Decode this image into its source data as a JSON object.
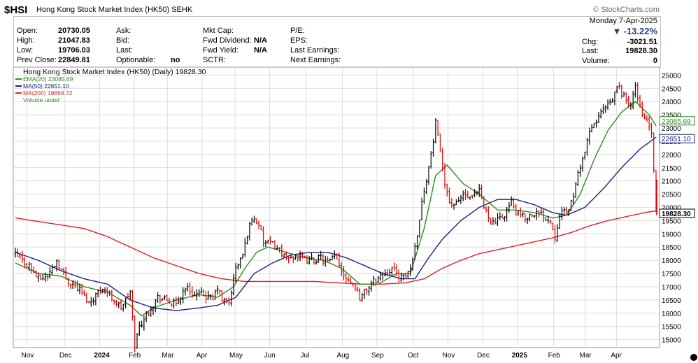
{
  "header": {
    "symbol": "$HSI",
    "name": "Hong Kong Stock Market Index (HK50)",
    "exchange": "SEHK",
    "brand": "© StockCharts.com",
    "date": "Monday  7-Apr-2025",
    "change_pct": "-13.22%",
    "chg_label": "Chg:",
    "chg_value": "-3021.51",
    "last_label": "Last:",
    "last_value": "19828.30",
    "volume_label": "Volume:",
    "volume_value": "0"
  },
  "quote": {
    "open_label": "Open:",
    "open": "20730.05",
    "high_label": "High:",
    "high": "21047.83",
    "low_label": "Low:",
    "low": "19706.03",
    "prev_label": "Prev Close:",
    "prev": "22849.81",
    "ask_label": "Ask:",
    "bid_label": "Bid:",
    "last_label2": "Last:",
    "optionable_label": "Optionable:",
    "optionable": "no",
    "mktcap_label": "Mkt Cap:",
    "fwd_div_label": "Fwd Dividend:",
    "fwd_div": "N/A",
    "fwd_yield_label": "Fwd Yield:",
    "fwd_yield": "N/A",
    "sctr_label": "SCTR:",
    "pe_label": "P/E:",
    "eps_label": "EPS:",
    "last_earn_label": "Last Earnings:",
    "next_earn_label": "Next Earnings:"
  },
  "legend": {
    "title": "Hong Kong Stock Market Index (HK50) (Daily) 19828.30",
    "ema": "EMA(20) 23085.69",
    "ma50": "MA(50) 22651.10",
    "ma200": "MA(200) 19869.72",
    "volume": "Volume undef"
  },
  "colors": {
    "up": "#000000",
    "down": "#e00000",
    "ema": "#2e8b22",
    "ma50": "#1a237e",
    "ma200": "#e02020",
    "grid": "#dcdcdc"
  },
  "chart_data": {
    "type": "line",
    "title": "Hong Kong Stock Market Index (HK50) (Daily) 19828.30",
    "x_ticks": [
      "Nov",
      "Dec",
      "2024",
      "Feb",
      "Mar",
      "Apr",
      "May",
      "Jun",
      "Jul",
      "Aug",
      "Sep",
      "Oct",
      "Nov",
      "Dec",
      "2025",
      "Feb",
      "Mar",
      "Apr"
    ],
    "y_ticks": [
      15000,
      15500,
      16000,
      16500,
      17000,
      17500,
      18000,
      18500,
      19000,
      19500,
      20000,
      20500,
      21000,
      21500,
      22000,
      22500,
      23000,
      23500,
      24000,
      24500,
      25000
    ],
    "ylim": [
      14700,
      25300
    ],
    "price_labels": [
      {
        "value": 23085.69,
        "text": "23085.69",
        "color": "#2e8b22"
      },
      {
        "value": 22651.1,
        "text": "22651.10",
        "color": "#1a237e"
      },
      {
        "value": 19869.72,
        "text": "19869.72",
        "color": "#e02020"
      },
      {
        "value": 19828.3,
        "text": "19828.30",
        "color": "#000000"
      }
    ],
    "price_anchors": [
      [
        0,
        18200
      ],
      [
        6,
        17800
      ],
      [
        10,
        17300
      ],
      [
        14,
        17400
      ],
      [
        18,
        18000
      ],
      [
        22,
        17300
      ],
      [
        28,
        16900
      ],
      [
        32,
        16400
      ],
      [
        38,
        17000
      ],
      [
        42,
        16600
      ],
      [
        46,
        16200
      ],
      [
        50,
        16800
      ],
      [
        52,
        14800
      ],
      [
        54,
        15500
      ],
      [
        58,
        16100
      ],
      [
        62,
        16600
      ],
      [
        66,
        16500
      ],
      [
        70,
        16300
      ],
      [
        74,
        17000
      ],
      [
        78,
        16700
      ],
      [
        82,
        16700
      ],
      [
        86,
        16500
      ],
      [
        88,
        17000
      ],
      [
        90,
        16500
      ],
      [
        93,
        16400
      ],
      [
        96,
        17700
      ],
      [
        99,
        18200
      ],
      [
        101,
        19000
      ],
      [
        103,
        19600
      ],
      [
        106,
        19400
      ],
      [
        108,
        18700
      ],
      [
        112,
        18600
      ],
      [
        116,
        18300
      ],
      [
        118,
        18000
      ],
      [
        122,
        18200
      ],
      [
        126,
        18000
      ],
      [
        130,
        18000
      ],
      [
        133,
        18100
      ],
      [
        136,
        17900
      ],
      [
        140,
        18200
      ],
      [
        142,
        17600
      ],
      [
        145,
        17300
      ],
      [
        148,
        17000
      ],
      [
        150,
        16600
      ],
      [
        153,
        16900
      ],
      [
        156,
        17200
      ],
      [
        160,
        17500
      ],
      [
        164,
        17700
      ],
      [
        166,
        17500
      ],
      [
        169,
        17300
      ],
      [
        172,
        17700
      ],
      [
        174,
        18500
      ],
      [
        176,
        19600
      ],
      [
        178,
        20700
      ],
      [
        180,
        21500
      ],
      [
        182,
        22500
      ],
      [
        183,
        23200
      ],
      [
        185,
        22000
      ],
      [
        187,
        21000
      ],
      [
        189,
        20200
      ],
      [
        192,
        20100
      ],
      [
        195,
        20500
      ],
      [
        198,
        20300
      ],
      [
        202,
        20600
      ],
      [
        204,
        20000
      ],
      [
        208,
        19400
      ],
      [
        212,
        19600
      ],
      [
        216,
        20200
      ],
      [
        218,
        19800
      ],
      [
        222,
        19600
      ],
      [
        226,
        19800
      ],
      [
        230,
        19700
      ],
      [
        233,
        19500
      ],
      [
        235,
        18900
      ],
      [
        237,
        19800
      ],
      [
        240,
        19800
      ],
      [
        242,
        20200
      ],
      [
        244,
        20800
      ],
      [
        246,
        21600
      ],
      [
        248,
        22100
      ],
      [
        250,
        22800
      ],
      [
        253,
        23300
      ],
      [
        256,
        23700
      ],
      [
        260,
        24000
      ],
      [
        262,
        24600
      ],
      [
        265,
        24200
      ],
      [
        268,
        23800
      ],
      [
        270,
        24600
      ],
      [
        272,
        23800
      ],
      [
        275,
        23200
      ],
      [
        277,
        22850
      ],
      [
        279,
        19828
      ]
    ],
    "ema20_anchors": [
      [
        0,
        17900
      ],
      [
        10,
        17500
      ],
      [
        20,
        17400
      ],
      [
        30,
        17000
      ],
      [
        40,
        16800
      ],
      [
        50,
        16300
      ],
      [
        55,
        15900
      ],
      [
        60,
        16200
      ],
      [
        70,
        16500
      ],
      [
        80,
        16700
      ],
      [
        88,
        16600
      ],
      [
        95,
        17000
      ],
      [
        100,
        17700
      ],
      [
        105,
        18300
      ],
      [
        110,
        18500
      ],
      [
        118,
        18300
      ],
      [
        126,
        18100
      ],
      [
        134,
        18000
      ],
      [
        142,
        17700
      ],
      [
        150,
        17100
      ],
      [
        158,
        17100
      ],
      [
        166,
        17500
      ],
      [
        172,
        17500
      ],
      [
        178,
        19200
      ],
      [
        183,
        21200
      ],
      [
        188,
        21600
      ],
      [
        195,
        20900
      ],
      [
        202,
        20500
      ],
      [
        210,
        19900
      ],
      [
        218,
        19900
      ],
      [
        226,
        19800
      ],
      [
        234,
        19600
      ],
      [
        240,
        19700
      ],
      [
        246,
        20500
      ],
      [
        252,
        21800
      ],
      [
        258,
        22900
      ],
      [
        264,
        23600
      ],
      [
        270,
        24000
      ],
      [
        276,
        23500
      ],
      [
        279,
        23086
      ]
    ],
    "ma50_anchors": [
      [
        0,
        18300
      ],
      [
        10,
        18000
      ],
      [
        20,
        17600
      ],
      [
        30,
        17300
      ],
      [
        40,
        17100
      ],
      [
        50,
        16500
      ],
      [
        60,
        16200
      ],
      [
        70,
        16100
      ],
      [
        80,
        16200
      ],
      [
        88,
        16300
      ],
      [
        96,
        16600
      ],
      [
        104,
        17500
      ],
      [
        112,
        17900
      ],
      [
        120,
        18200
      ],
      [
        128,
        18300
      ],
      [
        136,
        18300
      ],
      [
        144,
        18100
      ],
      [
        152,
        17800
      ],
      [
        160,
        17500
      ],
      [
        168,
        17300
      ],
      [
        174,
        17300
      ],
      [
        180,
        18100
      ],
      [
        186,
        18800
      ],
      [
        194,
        19500
      ],
      [
        202,
        20000
      ],
      [
        210,
        20300
      ],
      [
        218,
        20300
      ],
      [
        226,
        20100
      ],
      [
        234,
        19800
      ],
      [
        240,
        19700
      ],
      [
        248,
        20000
      ],
      [
        256,
        20700
      ],
      [
        264,
        21500
      ],
      [
        272,
        22200
      ],
      [
        279,
        22651
      ]
    ],
    "ma200_anchors": [
      [
        0,
        19600
      ],
      [
        15,
        19400
      ],
      [
        30,
        19200
      ],
      [
        40,
        18900
      ],
      [
        50,
        18500
      ],
      [
        60,
        18100
      ],
      [
        70,
        17800
      ],
      [
        80,
        17500
      ],
      [
        90,
        17300
      ],
      [
        100,
        17200
      ],
      [
        110,
        17200
      ],
      [
        120,
        17200
      ],
      [
        130,
        17200
      ],
      [
        140,
        17150
      ],
      [
        150,
        17100
      ],
      [
        160,
        17100
      ],
      [
        170,
        17150
      ],
      [
        178,
        17300
      ],
      [
        186,
        17700
      ],
      [
        194,
        18000
      ],
      [
        202,
        18250
      ],
      [
        210,
        18400
      ],
      [
        218,
        18550
      ],
      [
        226,
        18700
      ],
      [
        234,
        18850
      ],
      [
        242,
        19050
      ],
      [
        250,
        19300
      ],
      [
        258,
        19500
      ],
      [
        266,
        19650
      ],
      [
        274,
        19800
      ],
      [
        279,
        19870
      ]
    ]
  }
}
